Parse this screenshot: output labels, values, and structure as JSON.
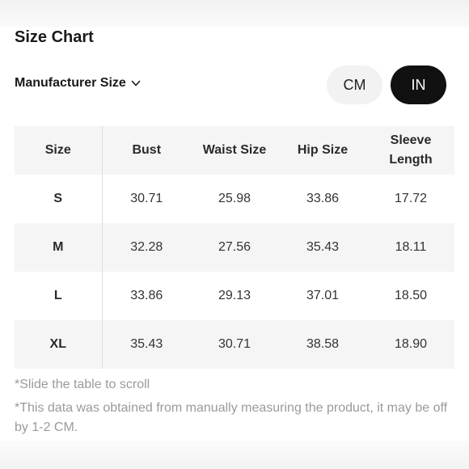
{
  "header": {
    "title": "Size Chart",
    "selector_label": "Manufacturer Size",
    "selector_icon": "chevron-down-icon"
  },
  "units": {
    "options": [
      "CM",
      "IN"
    ],
    "selected": "IN"
  },
  "table": {
    "columns": [
      "Size",
      "Bust",
      "Waist Size",
      "Hip Size",
      "Sleeve Length"
    ],
    "rows": [
      {
        "size": "S",
        "bust": "30.71",
        "waist": "25.98",
        "hip": "33.86",
        "sleeve": "17.72"
      },
      {
        "size": "M",
        "bust": "32.28",
        "waist": "27.56",
        "hip": "35.43",
        "sleeve": "18.11"
      },
      {
        "size": "L",
        "bust": "33.86",
        "waist": "29.13",
        "hip": "37.01",
        "sleeve": "18.50"
      },
      {
        "size": "XL",
        "bust": "35.43",
        "waist": "30.71",
        "hip": "38.58",
        "sleeve": "18.90"
      }
    ]
  },
  "notes": {
    "scroll_hint": "*Slide the table to scroll",
    "disclaimer": "*This data was obtained from manually measuring the product, it may be off by 1-2 CM."
  }
}
